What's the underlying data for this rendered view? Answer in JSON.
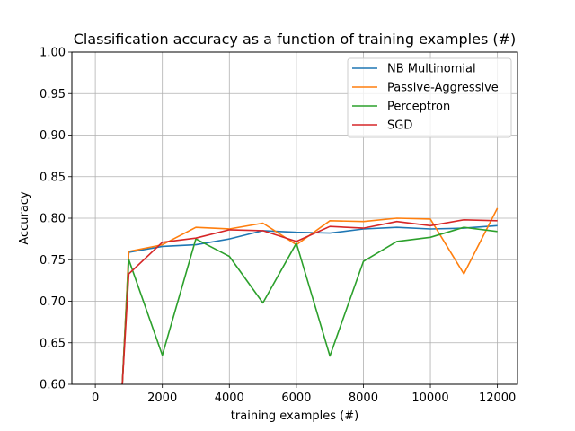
{
  "chart_data": {
    "type": "line",
    "title": "Classification accuracy as a function of training examples (#)",
    "xlabel": "training examples (#)",
    "ylabel": "Accuracy",
    "xlim": [
      -700,
      12600
    ],
    "ylim": [
      0.6,
      1.0
    ],
    "xticks": [
      0,
      2000,
      4000,
      6000,
      8000,
      10000,
      12000
    ],
    "xtick_labels": [
      "0",
      "2000",
      "4000",
      "6000",
      "8000",
      "10000",
      "12000"
    ],
    "yticks": [
      0.6,
      0.65,
      0.7,
      0.75,
      0.8,
      0.85,
      0.9,
      0.95,
      1.0
    ],
    "ytick_labels": [
      "0.60",
      "0.65",
      "0.70",
      "0.75",
      "0.80",
      "0.85",
      "0.90",
      "0.95",
      "1.00"
    ],
    "grid": true,
    "legend_position": "top-right",
    "series": [
      {
        "name": "NB Multinomial",
        "color": "#1f77b4",
        "x": [
          800,
          1000,
          2000,
          3000,
          4000,
          5000,
          6000,
          7000,
          8000,
          9000,
          10000,
          11000,
          12000
        ],
        "y": [
          0.595,
          0.759,
          0.766,
          0.768,
          0.775,
          0.785,
          0.783,
          0.782,
          0.787,
          0.789,
          0.787,
          0.788,
          0.791
        ]
      },
      {
        "name": "Passive-Aggressive",
        "color": "#ff7f0e",
        "x": [
          800,
          1000,
          2000,
          3000,
          4000,
          5000,
          6000,
          7000,
          8000,
          9000,
          10000,
          11000,
          12000
        ],
        "y": [
          0.595,
          0.76,
          0.768,
          0.789,
          0.787,
          0.794,
          0.768,
          0.797,
          0.796,
          0.8,
          0.799,
          0.733,
          0.812
        ]
      },
      {
        "name": "Perceptron",
        "color": "#2ca02c",
        "x": [
          800,
          1000,
          2000,
          3000,
          4000,
          5000,
          6000,
          7000,
          8000,
          9000,
          10000,
          11000,
          12000
        ],
        "y": [
          0.595,
          0.75,
          0.635,
          0.775,
          0.754,
          0.698,
          0.77,
          0.634,
          0.748,
          0.772,
          0.777,
          0.789,
          0.784
        ]
      },
      {
        "name": "SGD",
        "color": "#d62728",
        "x": [
          800,
          1000,
          2000,
          3000,
          4000,
          5000,
          6000,
          7000,
          8000,
          9000,
          10000,
          11000,
          12000
        ],
        "y": [
          0.595,
          0.733,
          0.771,
          0.776,
          0.786,
          0.785,
          0.772,
          0.79,
          0.788,
          0.796,
          0.791,
          0.798,
          0.797
        ]
      }
    ]
  }
}
